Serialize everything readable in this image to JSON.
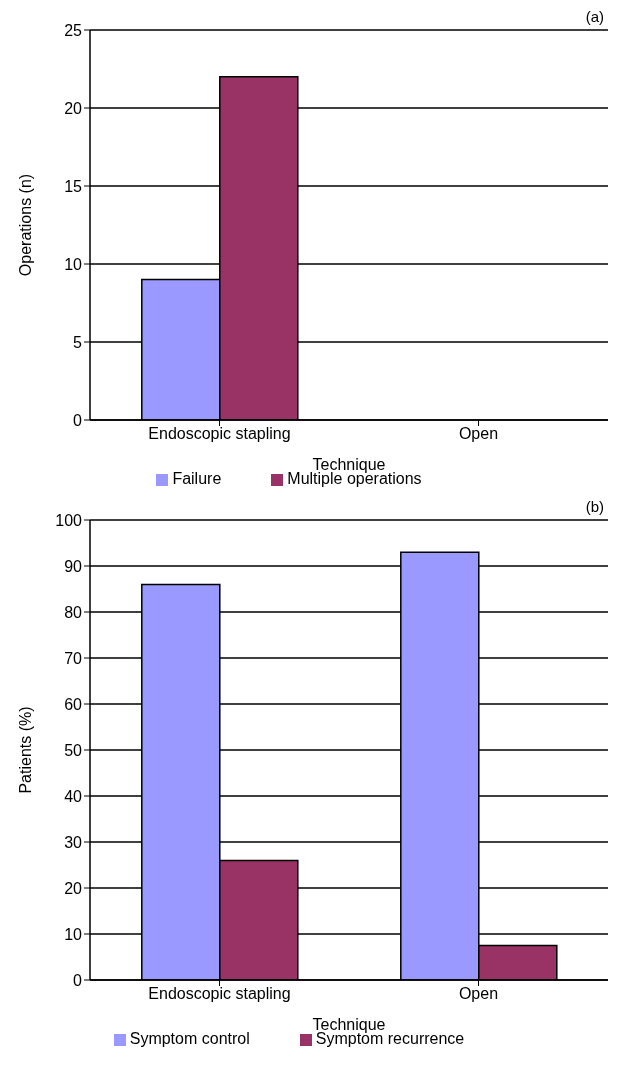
{
  "chart_data": [
    {
      "type": "bar",
      "title": "(a)",
      "xlabel": "Technique",
      "ylabel": "Operations (n)",
      "categories": [
        "Endoscopic stapling",
        "Open"
      ],
      "series": [
        {
          "name": "Failure",
          "color": "#9999ff",
          "values": [
            9,
            0
          ]
        },
        {
          "name": "Multiple operations",
          "color": "#993366",
          "values": [
            22,
            0
          ]
        }
      ],
      "ylim": [
        0,
        25
      ],
      "yticks": [
        0,
        5,
        10,
        15,
        20,
        25
      ],
      "grid": "y",
      "legend": "bottom"
    },
    {
      "type": "bar",
      "title": "(b)",
      "xlabel": "Technique",
      "ylabel": "Patients (%)",
      "categories": [
        "Endoscopic stapling",
        "Open"
      ],
      "series": [
        {
          "name": "Symptom control",
          "color": "#9999ff",
          "values": [
            86,
            93
          ]
        },
        {
          "name": "Symptom recurrence",
          "color": "#993366",
          "values": [
            26,
            7.5
          ]
        }
      ],
      "ylim": [
        0,
        100
      ],
      "yticks": [
        0,
        10,
        20,
        30,
        40,
        50,
        60,
        70,
        80,
        90,
        100
      ],
      "grid": "y",
      "legend": "bottom"
    }
  ]
}
